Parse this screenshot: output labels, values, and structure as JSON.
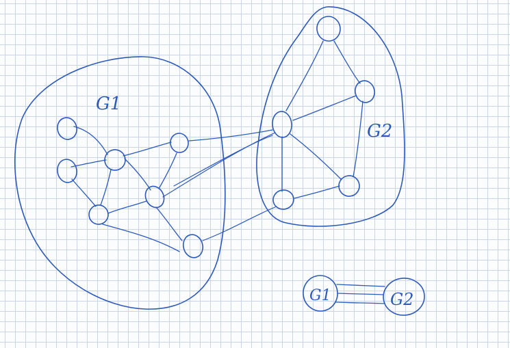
{
  "labels": {
    "g1": "G1",
    "g2": "G2",
    "summary_g1": "G1",
    "summary_g2": "G2"
  },
  "colors": {
    "ink": "#2c59b8",
    "grid": "#c9d5e6",
    "paper": "#fbfcfe"
  }
}
